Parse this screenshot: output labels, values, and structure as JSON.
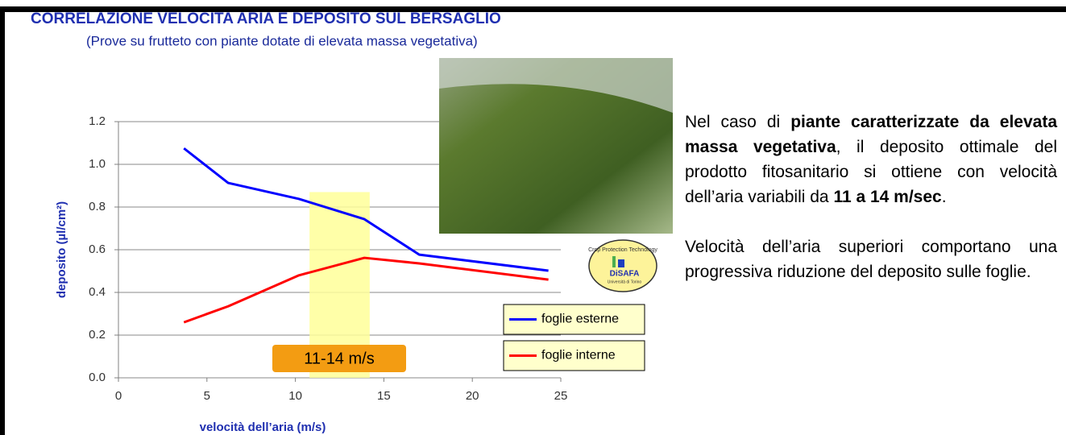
{
  "chart_data": {
    "type": "line",
    "title": "CORRELAZIONE VELOCITA ARIA E DEPOSITO SUL BERSAGLIO",
    "subtitle": "(Prove su frutteto con piante dotate di elevata massa vegetativa)",
    "x_label": "velocità dell’aria (m/s)",
    "y_label": "deposito (µl/cm²)",
    "xlim": [
      0,
      25
    ],
    "xticks": [
      0,
      5,
      10,
      15,
      20,
      25
    ],
    "ylim": [
      0,
      1.2
    ],
    "yticks": [
      {
        "value": 0,
        "label": "0.0"
      },
      {
        "value": 0.2,
        "label": "0.2"
      },
      {
        "value": 0.4,
        "label": "0.4"
      },
      {
        "value": 0.6,
        "label": "0.6"
      },
      {
        "value": 0.8,
        "label": "0.8"
      },
      {
        "value": 1,
        "label": "1.0"
      },
      {
        "value": 1.2,
        "label": "1.2"
      }
    ],
    "grid": true,
    "x": [
      3.7,
      6.2,
      10.2,
      13.9,
      17.0,
      24.3
    ],
    "series": [
      {
        "name": "foglie esterne",
        "color": "#0000ff",
        "values": [
          1.075,
          0.913,
          0.838,
          0.743,
          0.577,
          0.502
        ]
      },
      {
        "name": "foglie interne",
        "color": "#ff0000",
        "values": [
          0.26,
          0.335,
          0.48,
          0.562,
          0.536,
          0.46
        ]
      }
    ],
    "highlight": {
      "xlim": [
        10.8,
        14.2
      ],
      "top": 0.87,
      "color": "#ffff99",
      "label": "11-14 m/s"
    }
  },
  "logo": {
    "lines": [
      "Crop Protection Technology",
      "DiSAFA",
      "Università di Torino"
    ]
  },
  "text": {
    "paragraphs": [
      [
        {
          "text": "Nel caso di ",
          "bold": false
        },
        {
          "text": "piante caratterizzate da elevata massa vegetativa",
          "bold": true
        },
        {
          "text": ", il deposito ottimale del prodotto fitosanitario si ottiene con velocità dell’aria variabili da ",
          "bold": false
        },
        {
          "text": "11 a 14 m/sec",
          "bold": true
        },
        {
          "text": ".",
          "bold": false
        }
      ],
      [
        {
          "text": "Velocità dell’aria superiori comportano una progressiva riduzione del deposito sulle foglie.",
          "bold": false
        }
      ]
    ]
  }
}
